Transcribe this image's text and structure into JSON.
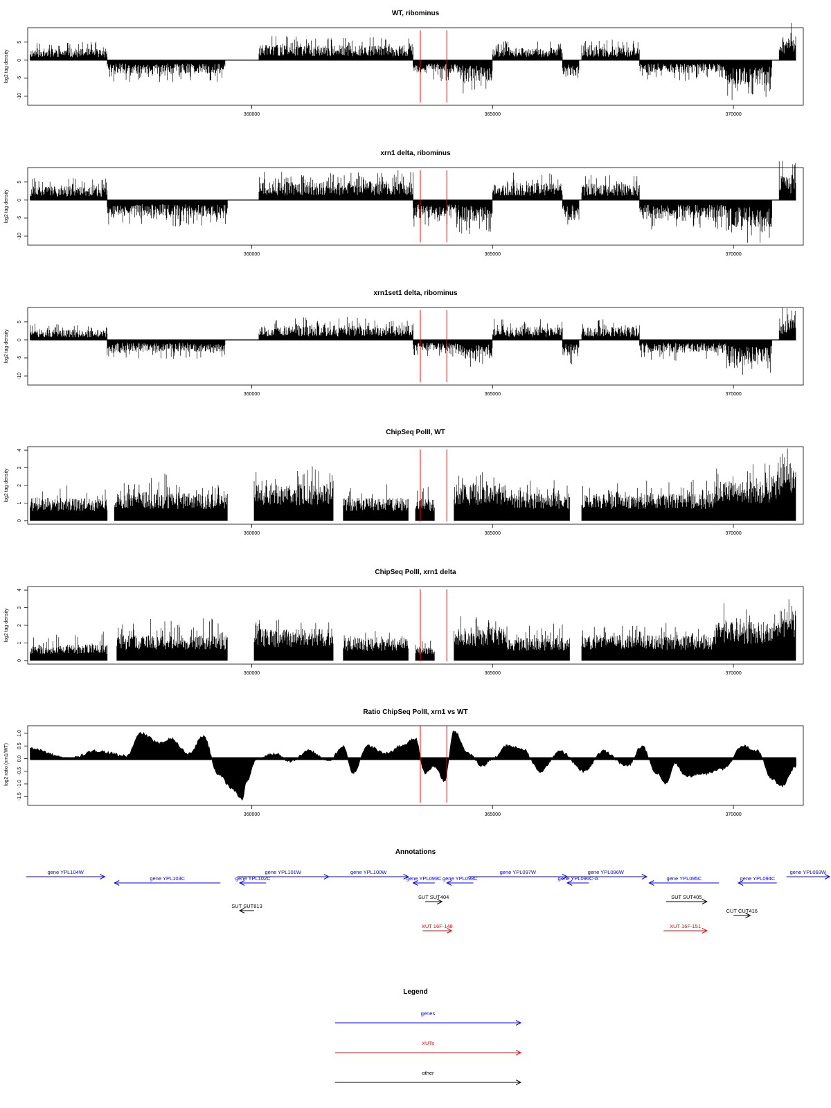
{
  "chart_data": [
    {
      "type": "bar",
      "title": "WT, ribominus",
      "ylabel": "log2 tag density",
      "ylim": [
        -12.5,
        9
      ],
      "y_ticks": [
        -10,
        -5,
        0,
        5
      ],
      "xlim": [
        355350,
        371450
      ],
      "x_ticks": [
        360000,
        365000,
        370000
      ],
      "markers": [
        363500,
        364050
      ],
      "segments": [
        {
          "x": [
            355400,
            357000
          ],
          "sign": 1,
          "amp": 3.2,
          "seed": 11
        },
        {
          "x": [
            357000,
            359450
          ],
          "sign": -1,
          "amp": 3.8,
          "seed": 12
        },
        {
          "x": [
            360150,
            363350
          ],
          "sign": 1,
          "amp": 4.2,
          "seed": 13
        },
        {
          "x": [
            363350,
            364300
          ],
          "sign": -1,
          "amp": 3.8,
          "seed": 14
        },
        {
          "x": [
            364300,
            365000
          ],
          "sign": -1,
          "amp": 6.0,
          "seed": 15
        },
        {
          "x": [
            365000,
            366450
          ],
          "sign": 1,
          "amp": 3.6,
          "seed": 16
        },
        {
          "x": [
            366450,
            366800
          ],
          "sign": -1,
          "amp": 5.0,
          "seed": 17
        },
        {
          "x": [
            366850,
            368050
          ],
          "sign": 1,
          "amp": 3.8,
          "seed": 18
        },
        {
          "x": [
            368050,
            369850
          ],
          "sign": -1,
          "amp": 3.6,
          "seed": 19
        },
        {
          "x": [
            369850,
            370800
          ],
          "sign": -1,
          "amp": 7.0,
          "seed": 20
        },
        {
          "x": [
            370950,
            371300
          ],
          "sign": 1,
          "amp": 6.8,
          "seed": 21
        }
      ]
    },
    {
      "type": "bar",
      "title": "xrn1 delta, ribominus",
      "ylabel": "log2 tag density",
      "ylim": [
        -12.5,
        9
      ],
      "y_ticks": [
        -10,
        -5,
        0,
        5
      ],
      "xlim": [
        355350,
        371450
      ],
      "x_ticks": [
        360000,
        365000,
        370000
      ],
      "markers": [
        363500,
        364050
      ],
      "segments": [
        {
          "x": [
            355400,
            357000
          ],
          "sign": 1,
          "amp": 3.8,
          "seed": 31
        },
        {
          "x": [
            357000,
            359500
          ],
          "sign": -1,
          "amp": 4.6,
          "seed": 32
        },
        {
          "x": [
            360150,
            363350
          ],
          "sign": 1,
          "amp": 5.2,
          "seed": 33
        },
        {
          "x": [
            363350,
            364300
          ],
          "sign": -1,
          "amp": 5.0,
          "seed": 34
        },
        {
          "x": [
            364300,
            365000
          ],
          "sign": -1,
          "amp": 6.2,
          "seed": 35
        },
        {
          "x": [
            365000,
            366450
          ],
          "sign": 1,
          "amp": 4.8,
          "seed": 36
        },
        {
          "x": [
            366450,
            366800
          ],
          "sign": -1,
          "amp": 5.6,
          "seed": 37
        },
        {
          "x": [
            366850,
            368050
          ],
          "sign": 1,
          "amp": 4.6,
          "seed": 38
        },
        {
          "x": [
            368050,
            369850
          ],
          "sign": -1,
          "amp": 5.2,
          "seed": 39
        },
        {
          "x": [
            369850,
            370800
          ],
          "sign": -1,
          "amp": 7.6,
          "seed": 40
        },
        {
          "x": [
            370950,
            371300
          ],
          "sign": 1,
          "amp": 7.0,
          "seed": 41
        }
      ]
    },
    {
      "type": "bar",
      "title": "xrn1set1 delta, ribominus",
      "ylabel": "log2 tag density",
      "ylim": [
        -12.5,
        9
      ],
      "y_ticks": [
        -10,
        -5,
        0,
        5
      ],
      "xlim": [
        355350,
        371450
      ],
      "x_ticks": [
        360000,
        365000,
        370000
      ],
      "markers": [
        363500,
        364050
      ],
      "segments": [
        {
          "x": [
            355400,
            357000
          ],
          "sign": 1,
          "amp": 2.8,
          "seed": 51
        },
        {
          "x": [
            357000,
            359450
          ],
          "sign": -1,
          "amp": 3.4,
          "seed": 52
        },
        {
          "x": [
            360150,
            363350
          ],
          "sign": 1,
          "amp": 4.0,
          "seed": 53
        },
        {
          "x": [
            363350,
            364300
          ],
          "sign": -1,
          "amp": 3.0,
          "seed": 54
        },
        {
          "x": [
            364300,
            365000
          ],
          "sign": -1,
          "amp": 5.2,
          "seed": 55
        },
        {
          "x": [
            365000,
            366450
          ],
          "sign": 1,
          "amp": 3.6,
          "seed": 56
        },
        {
          "x": [
            366450,
            366800
          ],
          "sign": -1,
          "amp": 4.6,
          "seed": 57
        },
        {
          "x": [
            366850,
            368050
          ],
          "sign": 1,
          "amp": 3.6,
          "seed": 58
        },
        {
          "x": [
            368050,
            369850
          ],
          "sign": -1,
          "amp": 3.6,
          "seed": 59
        },
        {
          "x": [
            369850,
            370800
          ],
          "sign": -1,
          "amp": 6.4,
          "seed": 60
        },
        {
          "x": [
            370950,
            371300
          ],
          "sign": 1,
          "amp": 5.8,
          "seed": 61
        }
      ]
    },
    {
      "type": "bar",
      "title": "ChipSeq PolII, WT",
      "ylabel": "log2 tag density",
      "ylim": [
        -0.2,
        4.2
      ],
      "y_ticks": [
        0,
        1,
        2,
        3,
        4
      ],
      "xlim": [
        355350,
        371450
      ],
      "x_ticks": [
        360000,
        365000,
        370000
      ],
      "markers": [
        363500,
        364050
      ],
      "segments": [
        {
          "x": [
            355400,
            357000
          ],
          "level": 1.0,
          "amp": 0.9,
          "seed": 71
        },
        {
          "x": [
            357150,
            359500
          ],
          "level": 1.2,
          "amp": 1.2,
          "seed": 72
        },
        {
          "x": [
            360050,
            361700
          ],
          "level": 1.6,
          "amp": 1.3,
          "seed": 73
        },
        {
          "x": [
            361900,
            363250
          ],
          "level": 1.0,
          "amp": 1.0,
          "seed": 74
        },
        {
          "x": [
            363400,
            363800
          ],
          "level": 1.0,
          "amp": 0.8,
          "seed": 75
        },
        {
          "x": [
            364200,
            365300
          ],
          "level": 1.6,
          "amp": 1.0,
          "seed": 76
        },
        {
          "x": [
            365300,
            366600
          ],
          "level": 1.2,
          "amp": 1.0,
          "seed": 77
        },
        {
          "x": [
            366850,
            369600
          ],
          "level": 1.2,
          "amp": 1.0,
          "seed": 78
        },
        {
          "x": [
            369600,
            370900
          ],
          "level": 1.8,
          "amp": 1.4,
          "seed": 79
        },
        {
          "x": [
            370900,
            371300
          ],
          "level": 2.6,
          "amp": 1.2,
          "seed": 80
        }
      ]
    },
    {
      "type": "bar",
      "title": "ChipSeq PolII, xrn1 delta",
      "ylabel": "log2 tag density",
      "ylim": [
        -0.2,
        4.2
      ],
      "y_ticks": [
        0,
        1,
        2,
        3,
        4
      ],
      "xlim": [
        355350,
        371450
      ],
      "x_ticks": [
        360000,
        365000,
        370000
      ],
      "markers": [
        363500,
        364050
      ],
      "segments": [
        {
          "x": [
            355400,
            357000
          ],
          "level": 0.7,
          "amp": 0.8,
          "seed": 91
        },
        {
          "x": [
            357200,
            359500
          ],
          "level": 1.1,
          "amp": 1.4,
          "seed": 92
        },
        {
          "x": [
            360050,
            361700
          ],
          "level": 1.4,
          "amp": 1.0,
          "seed": 93
        },
        {
          "x": [
            361900,
            363250
          ],
          "level": 1.0,
          "amp": 1.0,
          "seed": 94
        },
        {
          "x": [
            363400,
            363800
          ],
          "level": 0.6,
          "amp": 0.5,
          "seed": 95
        },
        {
          "x": [
            364200,
            365300
          ],
          "level": 1.5,
          "amp": 1.0,
          "seed": 96
        },
        {
          "x": [
            365300,
            366600
          ],
          "level": 1.0,
          "amp": 0.8,
          "seed": 97
        },
        {
          "x": [
            366850,
            369600
          ],
          "level": 1.1,
          "amp": 0.9,
          "seed": 98
        },
        {
          "x": [
            369600,
            370900
          ],
          "level": 1.7,
          "amp": 1.2,
          "seed": 99
        },
        {
          "x": [
            370900,
            371300
          ],
          "level": 2.4,
          "amp": 0.8,
          "seed": 100
        }
      ]
    },
    {
      "type": "area",
      "title": "Ratio ChipSeq PolII, xrn1 vs WT",
      "ylabel": "log2 ratio (xrn1/WT)",
      "ylim": [
        -1.85,
        1.3
      ],
      "y_ticks": [
        -1.5,
        -1.0,
        -0.5,
        0.0,
        0.5,
        1.0
      ],
      "y_tick_labels": [
        "-1.5",
        "-1.0",
        "-0.5",
        "0.0",
        "0.5",
        "1.0"
      ],
      "xlim": [
        355350,
        371450
      ],
      "x_ticks": [
        360000,
        365000,
        370000
      ],
      "markers": [
        363500,
        364050
      ],
      "x": [
        355400,
        356200,
        356800,
        357400,
        357700,
        358100,
        358300,
        358700,
        359000,
        359300,
        359600,
        359800,
        359900,
        360100,
        360500,
        360800,
        361200,
        361600,
        361900,
        362100,
        362400,
        362800,
        363100,
        363400,
        363600,
        363800,
        364000,
        364200,
        364500,
        364800,
        365000,
        365300,
        365600,
        366000,
        366400,
        366900,
        367300,
        367800,
        368100,
        368400,
        368600,
        368800,
        369000,
        369400,
        369800,
        370200,
        370500,
        370800,
        371000,
        371300
      ],
      "y": [
        0.4,
        0.0,
        0.3,
        0.1,
        1.0,
        0.6,
        0.8,
        0.2,
        0.9,
        -0.6,
        -1.2,
        -1.6,
        -0.9,
        0.0,
        0.2,
        -0.1,
        0.3,
        -0.1,
        0.5,
        -0.6,
        0.5,
        0.2,
        0.5,
        0.8,
        -0.6,
        -0.3,
        -0.9,
        1.1,
        0.2,
        -0.3,
        0.0,
        0.5,
        0.4,
        -0.5,
        0.3,
        -0.5,
        0.3,
        -0.3,
        0.5,
        -0.6,
        -1.0,
        -0.2,
        -0.7,
        -0.6,
        -0.4,
        0.5,
        0.3,
        -0.8,
        -1.1,
        -0.3
      ]
    }
  ],
  "annotations": {
    "title": "Annotations",
    "colors": {
      "gene": "#0000ff",
      "xut": "#ff0000",
      "other": "#000000"
    },
    "genes": [
      {
        "label": "gene YPL104W",
        "start": 354800,
        "end": 356950,
        "strand": "+"
      },
      {
        "label": "gene YPL103C",
        "start": 357150,
        "end": 359350,
        "strand": "-"
      },
      {
        "label": "gene YPL102C",
        "start": 359750,
        "end": 360300,
        "strand": "-"
      },
      {
        "label": "gene YPL101W",
        "start": 359700,
        "end": 361600,
        "strand": "+"
      },
      {
        "label": "gene YPL100W",
        "start": 361600,
        "end": 363250,
        "strand": "+"
      },
      {
        "label": "gene YPL099C",
        "start": 363350,
        "end": 363800,
        "strand": "-"
      },
      {
        "label": "gene YPL098C",
        "start": 364050,
        "end": 364600,
        "strand": "-"
      },
      {
        "label": "gene YPL097W",
        "start": 364500,
        "end": 366550,
        "strand": "+"
      },
      {
        "label": "gene YPL096C-A",
        "start": 366550,
        "end": 367000,
        "strand": "-"
      },
      {
        "label": "gene YPL096W",
        "start": 366500,
        "end": 368200,
        "strand": "+"
      },
      {
        "label": "gene YPL095C",
        "start": 368250,
        "end": 369700,
        "strand": "-"
      },
      {
        "label": "gene YPL094C",
        "start": 370100,
        "end": 370900,
        "strand": "-"
      },
      {
        "label": "gene YPL093W",
        "start": 371100,
        "end": 373000,
        "strand": "+"
      }
    ],
    "others": [
      {
        "label": "SUT SUT813",
        "start": 359750,
        "end": 360050,
        "strand": "-"
      },
      {
        "label": "SUT SUT404",
        "start": 363600,
        "end": 363950,
        "strand": "+"
      },
      {
        "label": "SUT SUT405",
        "start": 368600,
        "end": 369450,
        "strand": "+"
      },
      {
        "label": "CUT CUT416",
        "start": 370000,
        "end": 370350,
        "strand": "+"
      }
    ],
    "xuts": [
      {
        "label": "XUT 16F-148",
        "start": 363550,
        "end": 364150,
        "strand": "+"
      },
      {
        "label": "XUT 16F-151",
        "start": 368550,
        "end": 369450,
        "strand": "+"
      }
    ]
  },
  "legend": {
    "title": "Legend",
    "entries": [
      {
        "label": "genes",
        "color": "#0000ff"
      },
      {
        "label": "XUTs",
        "color": "#ff0000"
      },
      {
        "label": "other",
        "color": "#000000"
      }
    ]
  }
}
